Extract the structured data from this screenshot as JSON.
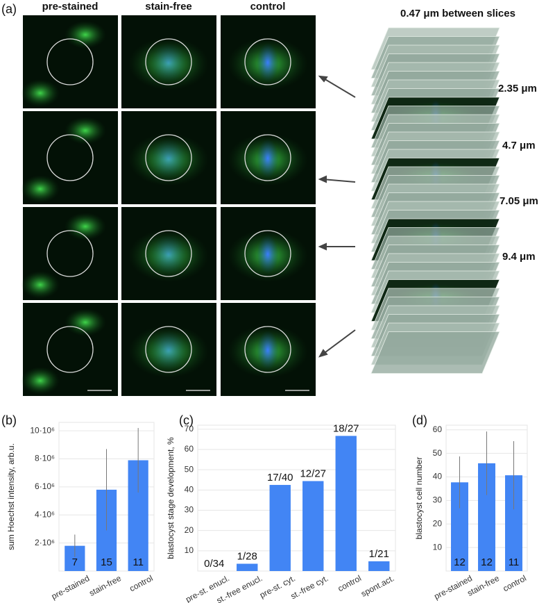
{
  "panel_a": {
    "label": "(a)",
    "columns": [
      "pre-stained",
      "stain-free",
      "control"
    ],
    "stack_title": "0.47 μm between slices",
    "depths": [
      "2.35 μm",
      "4.7 μm",
      "7.05 μm",
      "9.4 μm"
    ]
  },
  "chart_data": [
    {
      "type": "bar",
      "label": "(b)",
      "ylabel": "sum Hoechst intensity, arb.u.",
      "categories": [
        "pre-stained",
        "stain-free",
        "control"
      ],
      "values": [
        1800000,
        5800000,
        7900000
      ],
      "errors": [
        800000,
        2900000,
        2300000
      ],
      "counts": [
        "7",
        "15",
        "11"
      ],
      "color": "#4285f4",
      "ylim": [
        0,
        10600000
      ],
      "yticks": [
        {
          "value": 2000000,
          "label": "2·10⁶"
        },
        {
          "value": 4000000,
          "label": "4·10⁶"
        },
        {
          "value": 6000000,
          "label": "6·10⁶"
        },
        {
          "value": 8000000,
          "label": "8·10⁶"
        },
        {
          "value": 10000000,
          "label": "10·10⁶"
        }
      ],
      "grid": true
    },
    {
      "type": "bar",
      "label": "(c)",
      "ylabel": "blastocyst stage development, %",
      "categories": [
        "pre-st. enucl.",
        "st.-free enucl.",
        "pre-st. cyt.",
        "st.-free cyt.",
        "control",
        "spont.act."
      ],
      "values": [
        0,
        3.6,
        42.5,
        44.4,
        66.7,
        4.8
      ],
      "counts": [
        "0/34",
        "1/28",
        "17/40",
        "12/27",
        "18/27",
        "1/21"
      ],
      "color": "#4285f4",
      "ylim": [
        0,
        72
      ],
      "yticks": [
        10,
        20,
        30,
        40,
        50,
        60,
        70
      ],
      "grid": true
    },
    {
      "type": "bar",
      "label": "(d)",
      "ylabel": "blastocyst cell number",
      "categories": [
        "pre-stained",
        "stain-free",
        "control"
      ],
      "values": [
        37.7,
        45.8,
        40.7
      ],
      "errors": [
        11,
        13.5,
        14.5
      ],
      "counts": [
        "12",
        "12",
        "11"
      ],
      "color": "#4285f4",
      "ylim": [
        0,
        62
      ],
      "yticks": [
        10,
        20,
        30,
        40,
        50,
        60
      ],
      "grid": true
    }
  ]
}
